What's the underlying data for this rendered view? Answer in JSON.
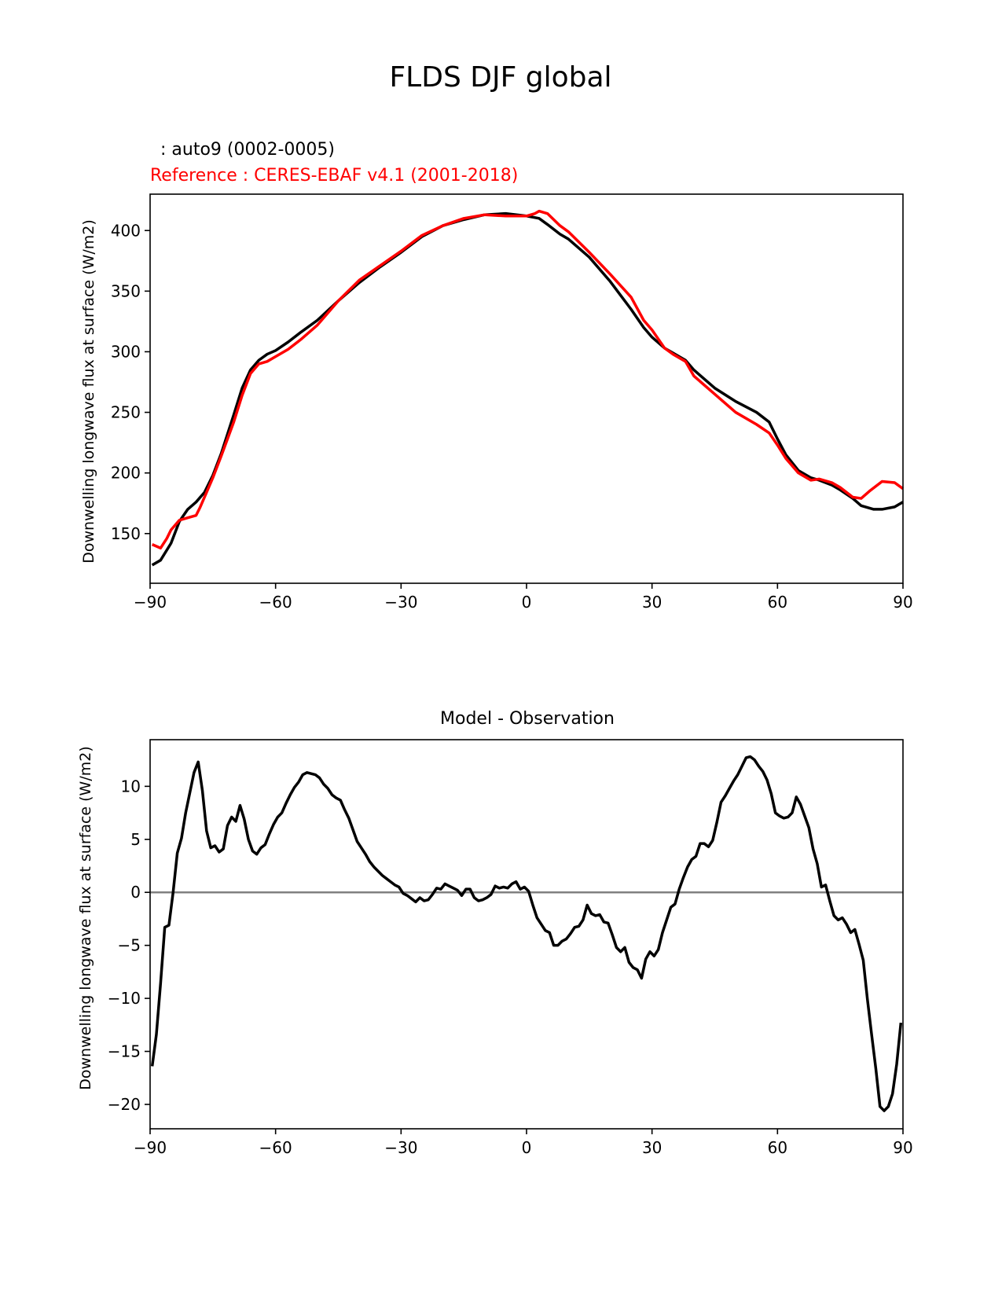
{
  "figure": {
    "suptitle": "FLDS DJF global"
  },
  "colors": {
    "test": "#000000",
    "reference": "#ff0000",
    "zero_line": "#808080"
  },
  "chart_data": [
    {
      "type": "line",
      "test_label": ": auto9 (0002-0005)",
      "reference_label": "Reference : CERES-EBAF v4.1 (2001-2018)",
      "ylabel": "Downwelling longwave flux at surface (W/m2)",
      "xlim": [
        -90,
        90
      ],
      "ylim": [
        109,
        430
      ],
      "xticks": [
        -90,
        -60,
        -30,
        0,
        30,
        60,
        90
      ],
      "xtick_labels": [
        "−90",
        "−60",
        "−30",
        "0",
        "30",
        "60",
        "90"
      ],
      "yticks": [
        150,
        200,
        250,
        300,
        350,
        400
      ],
      "ytick_labels": [
        "150",
        "200",
        "250",
        "300",
        "350",
        "400"
      ],
      "series": [
        {
          "role": "test",
          "x": [
            -89.5,
            -87.5,
            -85,
            -83,
            -81,
            -79,
            -77,
            -75,
            -73,
            -70,
            -68,
            -66,
            -64,
            -62,
            -60,
            -57,
            -54,
            -50,
            -45,
            -40,
            -35,
            -30,
            -25,
            -20,
            -15,
            -10,
            -5,
            0,
            3,
            5,
            8,
            10,
            15,
            20,
            25,
            28,
            30,
            33,
            35,
            38,
            40,
            45,
            50,
            55,
            58,
            60,
            62,
            65,
            68,
            70,
            73,
            75,
            78,
            80,
            83,
            85,
            88,
            90
          ],
          "y": [
            124,
            128,
            142,
            160,
            170,
            176,
            184,
            198,
            216,
            248,
            270,
            285,
            293,
            298,
            301,
            308,
            316,
            326,
            342,
            357,
            370,
            382,
            395,
            404,
            409,
            413,
            414,
            412,
            410,
            405,
            397,
            393,
            378,
            358,
            335,
            320,
            312,
            303,
            299,
            293,
            285,
            270,
            259,
            250,
            242,
            228,
            215,
            202,
            196,
            194,
            190,
            186,
            179,
            173,
            170,
            170,
            172,
            176
          ]
        },
        {
          "role": "reference",
          "x": [
            -89.5,
            -87.5,
            -86,
            -85,
            -83,
            -81,
            -79,
            -78,
            -77,
            -75,
            -73,
            -70,
            -68,
            -66,
            -64,
            -62,
            -60,
            -57,
            -54,
            -50,
            -45,
            -40,
            -35,
            -30,
            -25,
            -20,
            -15,
            -10,
            -5,
            0,
            2,
            3,
            5,
            8,
            10,
            15,
            20,
            25,
            28,
            30,
            33,
            35,
            38,
            40,
            45,
            50,
            55,
            58,
            60,
            62,
            65,
            68,
            70,
            73,
            75,
            78,
            80,
            82,
            85,
            88,
            90
          ],
          "y": [
            141,
            138,
            146,
            153,
            161,
            163,
            165,
            172,
            180,
            196,
            214,
            242,
            264,
            282,
            290,
            292,
            296,
            302,
            310,
            322,
            342,
            359,
            371,
            383,
            396,
            404,
            410,
            413,
            412,
            412,
            414,
            416,
            414,
            404,
            399,
            382,
            364,
            345,
            326,
            318,
            303,
            298,
            292,
            280,
            265,
            250,
            240,
            233,
            223,
            212,
            200,
            194,
            195,
            192,
            188,
            180,
            179,
            185,
            193,
            192,
            187
          ]
        }
      ]
    },
    {
      "type": "line",
      "title": "Model - Observation",
      "ylabel": "Downwelling longwave flux at surface (W/m2)",
      "xlim": [
        -90,
        90
      ],
      "ylim": [
        -22.3,
        14.4
      ],
      "xticks": [
        -90,
        -60,
        -30,
        0,
        30,
        60,
        90
      ],
      "xtick_labels": [
        "−90",
        "−60",
        "−30",
        "0",
        "30",
        "60",
        "90"
      ],
      "yticks": [
        -20,
        -15,
        -10,
        -5,
        0,
        5,
        10
      ],
      "ytick_labels": [
        "−20",
        "−15",
        "−10",
        "−5",
        "0",
        "5",
        "10"
      ],
      "zero_line": 0,
      "series": [
        {
          "role": "difference",
          "x": [
            -89.5,
            -88.5,
            -87.5,
            -86.5,
            -85.5,
            -84.5,
            -83.5,
            -82.5,
            -81.5,
            -80.5,
            -79.5,
            -78.5,
            -77.5,
            -76.5,
            -75.5,
            -74.5,
            -73.5,
            -72.5,
            -71.5,
            -70.5,
            -69.5,
            -68.5,
            -67.5,
            -66.5,
            -65.5,
            -64.5,
            -63.5,
            -62.5,
            -61.5,
            -60.5,
            -59.5,
            -58.5,
            -57.5,
            -56.5,
            -55.5,
            -54.5,
            -53.5,
            -52.5,
            -51.5,
            -50.5,
            -49.5,
            -48.5,
            -47.5,
            -46.5,
            -45.5,
            -44.5,
            -43.5,
            -42.5,
            -41.5,
            -40.5,
            -39.5,
            -38.5,
            -37.5,
            -36.5,
            -35.5,
            -34.5,
            -33.5,
            -32.5,
            -31.5,
            -30.5,
            -29.5,
            -28.5,
            -27.5,
            -26.5,
            -25.5,
            -24.5,
            -23.5,
            -22.5,
            -21.5,
            -20.5,
            -19.5,
            -18.5,
            -17.5,
            -16.5,
            -15.5,
            -14.5,
            -13.5,
            -12.5,
            -11.5,
            -10.5,
            -9.5,
            -8.5,
            -7.5,
            -6.5,
            -5.5,
            -4.5,
            -3.5,
            -2.5,
            -1.5,
            -0.5,
            0.5,
            1.5,
            2.5,
            3.5,
            4.5,
            5.5,
            6.5,
            7.5,
            8.5,
            9.5,
            10.5,
            11.5,
            12.5,
            13.5,
            14.5,
            15.5,
            16.5,
            17.5,
            18.5,
            19.5,
            20.5,
            21.5,
            22.5,
            23.5,
            24.5,
            25.5,
            26.5,
            27.5,
            28.5,
            29.5,
            30.5,
            31.5,
            32.5,
            33.5,
            34.5,
            35.5,
            36.5,
            37.5,
            38.5,
            39.5,
            40.5,
            41.5,
            42.5,
            43.5,
            44.5,
            45.5,
            46.5,
            47.5,
            48.5,
            49.5,
            50.5,
            51.5,
            52.5,
            53.5,
            54.5,
            55.5,
            56.5,
            57.5,
            58.5,
            59.5,
            60.5,
            61.5,
            62.5,
            63.5,
            64.5,
            65.5,
            66.5,
            67.5,
            68.5,
            69.5,
            70.5,
            71.5,
            72.5,
            73.5,
            74.5,
            75.5,
            76.5,
            77.5,
            78.5,
            79.5,
            80.5,
            81.5,
            82.5,
            83.5,
            84.5,
            85.5,
            86.5,
            87.5,
            88.5,
            89.5
          ],
          "y": [
            -16.4,
            -13.4,
            -8.6,
            -3.3,
            -3.1,
            0.0,
            3.7,
            5.1,
            7.5,
            9.4,
            11.3,
            12.3,
            9.6,
            5.8,
            4.2,
            4.4,
            3.8,
            4.1,
            6.3,
            7.1,
            6.7,
            8.2,
            6.9,
            5.0,
            3.9,
            3.6,
            4.2,
            4.5,
            5.5,
            6.4,
            7.1,
            7.5,
            8.4,
            9.2,
            9.9,
            10.4,
            11.1,
            11.3,
            11.2,
            11.1,
            10.8,
            10.2,
            9.8,
            9.2,
            8.9,
            8.7,
            7.8,
            7.0,
            5.9,
            4.8,
            4.2,
            3.6,
            2.9,
            2.4,
            2.0,
            1.6,
            1.3,
            1.0,
            0.7,
            0.5,
            -0.1,
            -0.3,
            -0.6,
            -0.9,
            -0.5,
            -0.8,
            -0.7,
            -0.2,
            0.4,
            0.3,
            0.8,
            0.6,
            0.4,
            0.2,
            -0.3,
            0.3,
            0.3,
            -0.5,
            -0.8,
            -0.7,
            -0.5,
            -0.2,
            0.6,
            0.4,
            0.5,
            0.4,
            0.8,
            1.0,
            0.3,
            0.5,
            0.1,
            -1.2,
            -2.4,
            -3.0,
            -3.6,
            -3.8,
            -5.0,
            -5.0,
            -4.6,
            -4.4,
            -3.9,
            -3.3,
            -3.2,
            -2.6,
            -1.2,
            -2.0,
            -2.2,
            -2.1,
            -2.8,
            -2.9,
            -4.0,
            -5.2,
            -5.6,
            -5.2,
            -6.6,
            -7.1,
            -7.3,
            -8.1,
            -6.3,
            -5.6,
            -6.0,
            -5.4,
            -3.8,
            -2.6,
            -1.4,
            -1.1,
            0.3,
            1.4,
            2.4,
            3.1,
            3.4,
            4.6,
            4.6,
            4.3,
            4.9,
            6.6,
            8.5,
            9.1,
            9.8,
            10.5,
            11.1,
            11.9,
            12.7,
            12.8,
            12.5,
            11.9,
            11.4,
            10.6,
            9.3,
            7.5,
            7.2,
            7.0,
            7.1,
            7.5,
            9.0,
            8.3,
            7.2,
            6.1,
            4.1,
            2.7,
            0.5,
            0.7,
            -0.8,
            -2.2,
            -2.6,
            -2.4,
            -3.0,
            -3.8,
            -3.5,
            -4.9,
            -6.4,
            -10.1,
            -13.4,
            -16.6,
            -20.2,
            -20.6,
            -20.2,
            -19.0,
            -16.2,
            -12.3
          ]
        }
      ]
    }
  ]
}
